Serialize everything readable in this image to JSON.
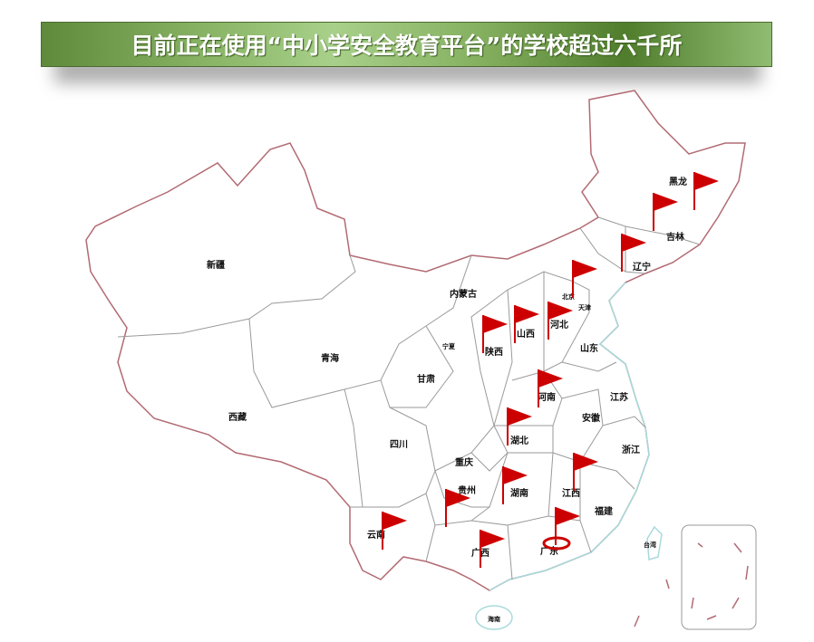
{
  "title": "目前正在使用“中小学安全教育平台”的学校超过六千所",
  "colors": {
    "border": "#b26a72",
    "province_line": "#9a9a9a",
    "coast": "#a8dadc",
    "flag": "#cc0000",
    "banner": "#6e9a48"
  },
  "provinces": {
    "xinjiang": "新疆",
    "xizang": "西藏",
    "qinghai": "青海",
    "gansu": "甘肃",
    "ningxia": "宁夏",
    "neimenggu": "内蒙古",
    "shaanxi": "陕西",
    "shanxi": "山西",
    "hebei": "河北",
    "beijing": "北京",
    "tianjin": "天津",
    "shandong": "山东",
    "henan": "河南",
    "jiangsu": "江苏",
    "anhui": "安徽",
    "hubei": "湖北",
    "zhejiang": "浙江",
    "chongqing": "重庆",
    "sichuan": "四川",
    "guizhou": "贵州",
    "hunan": "湖南",
    "jiangxi": "江西",
    "fujian": "福建",
    "yunnan": "云南",
    "guangxi": "广西",
    "guangdong": "广东",
    "hainan": "海南",
    "taiwan": "台湾",
    "liaoning": "辽宁",
    "jilin": "吉林",
    "heilongjiang": "黑龙"
  },
  "flag_icon": "red-flag-icon",
  "highlight_icon": "location-ring-icon"
}
